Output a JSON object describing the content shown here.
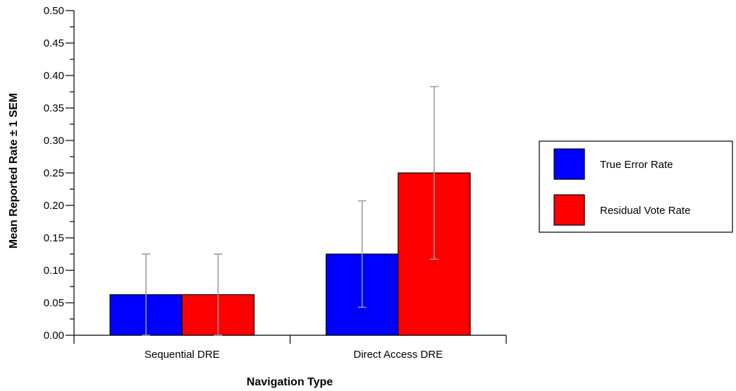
{
  "chart_data": {
    "type": "bar",
    "title": "",
    "xlabel": "Navigation Type",
    "ylabel": "Mean Reported Rate ± 1 SEM",
    "categories": [
      "Sequential DRE",
      "Direct Access DRE"
    ],
    "series": [
      {
        "name": "True Error Rate",
        "color": "#0000ff",
        "values": [
          0.0625,
          0.125
        ],
        "err_low": [
          0.0,
          0.043
        ],
        "err_high": [
          0.125,
          0.207
        ]
      },
      {
        "name": "Residual Vote Rate",
        "color": "#ff0000",
        "values": [
          0.0625,
          0.25
        ],
        "err_low": [
          0.0,
          0.117
        ],
        "err_high": [
          0.125,
          0.383
        ]
      }
    ],
    "ylim": [
      0,
      0.5
    ],
    "yticks": [
      "0.00",
      "0.05",
      "0.10",
      "0.15",
      "0.20",
      "0.25",
      "0.30",
      "0.35",
      "0.40",
      "0.45",
      "0.50"
    ],
    "grid": false,
    "legend_position": "right",
    "error_bar_color": "#999999"
  }
}
